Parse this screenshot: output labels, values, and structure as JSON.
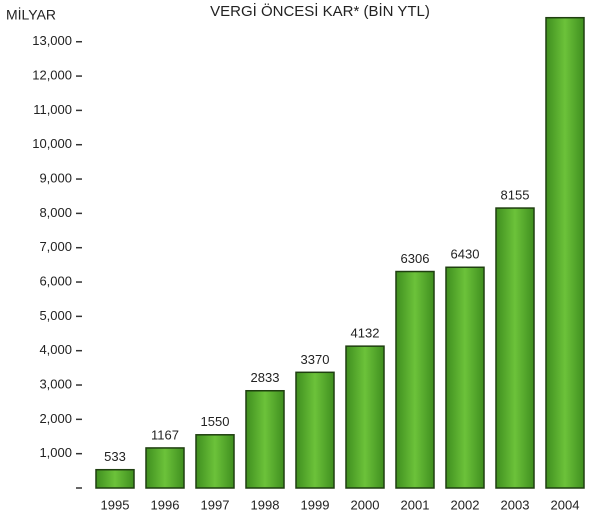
{
  "chart_data": {
    "type": "bar",
    "title": "VERGİ ÖNCESİ KAR* (BİN YTL)",
    "y_label": "MİLYAR",
    "categories": [
      "1995",
      "1996",
      "1997",
      "1998",
      "1999",
      "2000",
      "2001",
      "2002",
      "2003",
      "2004"
    ],
    "values": [
      533,
      1167,
      1550,
      2833,
      3370,
      4132,
      6306,
      6430,
      8155,
      13700
    ],
    "value_labels": [
      "533",
      "1167",
      "1550",
      "2833",
      "3370",
      "4132",
      "6306",
      "6430",
      "8155",
      null
    ],
    "color": "#5cb030",
    "ylim": [
      0,
      14000
    ],
    "yticks": [
      0,
      {
        "value": 1000,
        "label": "1,000"
      },
      {
        "value": 2000,
        "label": "2,000"
      },
      {
        "value": 3000,
        "label": "3,000"
      },
      {
        "value": 4000,
        "label": "4,000"
      },
      {
        "value": 5000,
        "label": "5,000"
      },
      {
        "value": 6000,
        "label": "6,000"
      },
      {
        "value": 7000,
        "label": "7,000"
      },
      {
        "value": 8000,
        "label": "8,000"
      },
      {
        "value": 9000,
        "label": "9,000"
      },
      {
        "value": 10000,
        "label": "10,000"
      },
      {
        "value": 11000,
        "label": "11,000"
      },
      {
        "value": 12000,
        "label": "12,000"
      },
      {
        "value": 13000,
        "label": "13,000"
      }
    ]
  }
}
